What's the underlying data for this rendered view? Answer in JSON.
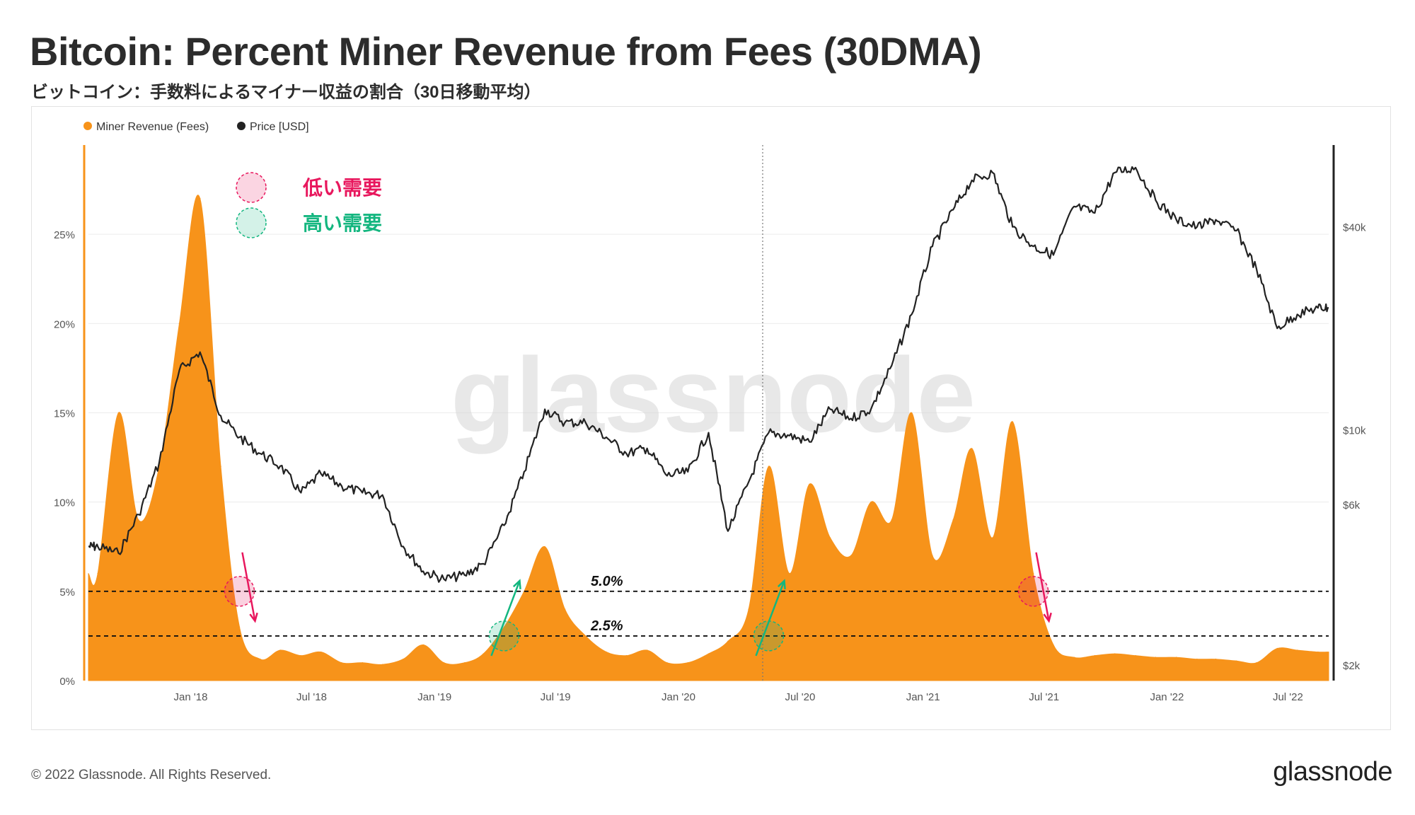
{
  "title": "Bitcoin: Percent Miner Revenue from Fees (30DMA)",
  "subtitle": "ビットコイン：手数料によるマイナー収益の割合（30日移動平均）",
  "footer": {
    "copyright": "© 2022 Glassnode. All Rights Reserved.",
    "logo": "glassnode"
  },
  "watermark": "glassnode",
  "annotations": {
    "low_demand": "低い需要",
    "high_demand": "高い需要",
    "line_5": "5.0%",
    "line_2_5": "2.5%"
  },
  "colors": {
    "fees": "#f7931a",
    "price": "#222222",
    "low": "#e8175d",
    "high": "#13b67f"
  },
  "chart_data": {
    "type": "area",
    "title": "Bitcoin: Percent Miner Revenue from Fees (30DMA)",
    "legend": [
      "Miner Revenue (Fees)",
      "Price [USD]"
    ],
    "legend_position": "top-left",
    "x_ticks": [
      "Jan '18",
      "Jul '18",
      "Jan '19",
      "Jul '19",
      "Jan '20",
      "Jul '20",
      "Jan '21",
      "Jul '21",
      "Jan '22",
      "Jul '22"
    ],
    "y_left_ticks": [
      "0%",
      "5%",
      "10%",
      "15%",
      "20%",
      "25%"
    ],
    "y_left_range": [
      0,
      30
    ],
    "y_right_ticks": [
      "$2k",
      "$6k",
      "$10k",
      "$40k"
    ],
    "y_right_scale": "log",
    "hlines": [
      5.0,
      2.5
    ],
    "x": [
      "2017-08",
      "2017-09",
      "2017-10",
      "2017-11",
      "2017-12",
      "2018-01",
      "2018-02",
      "2018-03",
      "2018-04",
      "2018-05",
      "2018-06",
      "2018-07",
      "2018-08",
      "2018-09",
      "2018-10",
      "2018-11",
      "2018-12",
      "2019-01",
      "2019-02",
      "2019-03",
      "2019-04",
      "2019-05",
      "2019-06",
      "2019-07",
      "2019-08",
      "2019-09",
      "2019-10",
      "2019-11",
      "2019-12",
      "2020-01",
      "2020-02",
      "2020-03",
      "2020-04",
      "2020-05",
      "2020-06",
      "2020-07",
      "2020-08",
      "2020-09",
      "2020-10",
      "2020-11",
      "2020-12",
      "2021-01",
      "2021-02",
      "2021-03",
      "2021-04",
      "2021-05",
      "2021-06",
      "2021-07",
      "2021-08",
      "2021-09",
      "2021-10",
      "2021-11",
      "2021-12",
      "2022-01",
      "2022-02",
      "2022-03",
      "2022-04",
      "2022-05",
      "2022-06",
      "2022-07",
      "2022-08"
    ],
    "series": [
      {
        "name": "Miner Revenue (Fees)",
        "unit": "%",
        "values": [
          6,
          15,
          9,
          12,
          20,
          27,
          12,
          3,
          1.2,
          1.7,
          1.4,
          1.6,
          1,
          1,
          0.9,
          1.2,
          2,
          1,
          1,
          1.5,
          3,
          5,
          7.5,
          4,
          2.5,
          1.6,
          1.4,
          1.7,
          1,
          1,
          1.5,
          2.2,
          4,
          12,
          6,
          11,
          8,
          7,
          10,
          9,
          15,
          7,
          9,
          13,
          8,
          14.5,
          6,
          2,
          1.3,
          1.4,
          1.5,
          1.4,
          1.3,
          1.3,
          1.2,
          1.2,
          1.1,
          1,
          1.8,
          1.7,
          1.6
        ]
      },
      {
        "name": "Price [USD]",
        "unit": "USD",
        "values": [
          4500,
          4300,
          5600,
          8000,
          15000,
          17000,
          11000,
          9500,
          8500,
          7800,
          6500,
          7400,
          6800,
          6500,
          6400,
          4500,
          3800,
          3600,
          3700,
          4000,
          5200,
          7500,
          11500,
          10500,
          10500,
          9500,
          8500,
          8800,
          7300,
          7500,
          9800,
          5000,
          7000,
          9800,
          9600,
          9200,
          11500,
          10800,
          11500,
          15500,
          22000,
          35000,
          45000,
          55000,
          58000,
          40000,
          35000,
          33000,
          46000,
          44000,
          58000,
          60000,
          48000,
          42000,
          40000,
          42000,
          39000,
          30000,
          20000,
          22000,
          23000
        ]
      }
    ]
  }
}
